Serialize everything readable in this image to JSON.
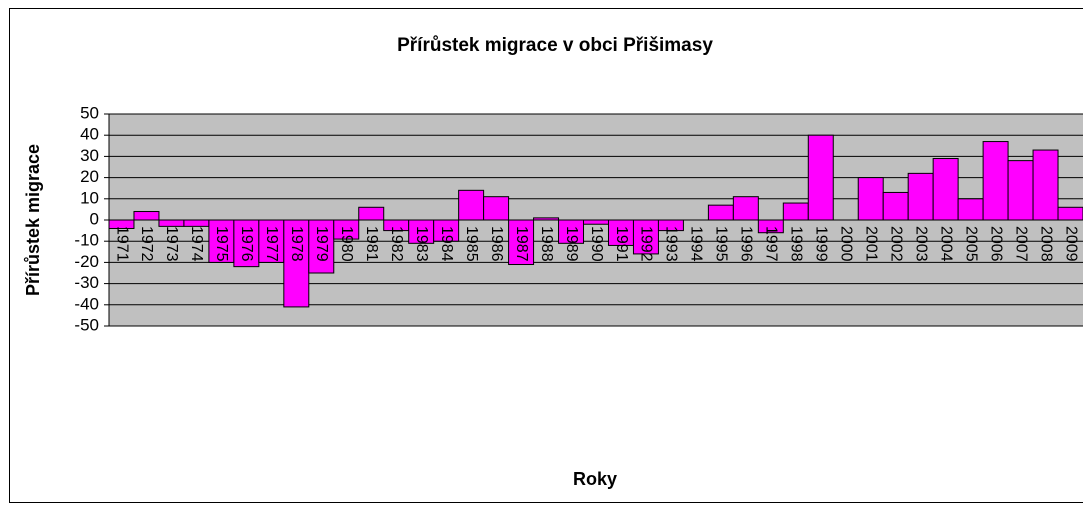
{
  "chart_data": {
    "type": "bar",
    "title": "Přírůstek migrace v obci Přišimasy",
    "x_label": "Roky",
    "y_label": "Přírůstek migrace",
    "categories": [
      "1971",
      "1972",
      "1973",
      "1974",
      "1975",
      "1976",
      "1977",
      "1978",
      "1979",
      "1980",
      "1981",
      "1982",
      "1983",
      "1984",
      "1985",
      "1986",
      "1987",
      "1988",
      "1989",
      "1990",
      "1991",
      "1992",
      "1993",
      "1994",
      "1995",
      "1996",
      "1997",
      "1998",
      "1999",
      "2000",
      "2001",
      "2002",
      "2003",
      "2004",
      "2005",
      "2006",
      "2007",
      "2008",
      "2009"
    ],
    "values": [
      -4,
      4,
      -3,
      -3,
      -20,
      -22,
      -20,
      -41,
      -25,
      -9,
      6,
      -5,
      -11,
      -10,
      14,
      11,
      -21,
      1,
      -11,
      -2,
      -12,
      -16,
      -5,
      0,
      7,
      11,
      -6,
      8,
      40,
      0,
      20,
      13,
      22,
      29,
      10,
      37,
      28,
      33,
      6
    ],
    "color": "#ff00ff",
    "ylim": [
      -50,
      50
    ],
    "yticks": [
      -50,
      -40,
      -30,
      -20,
      -10,
      0,
      10,
      20,
      30,
      40,
      50
    ],
    "grid": true
  }
}
